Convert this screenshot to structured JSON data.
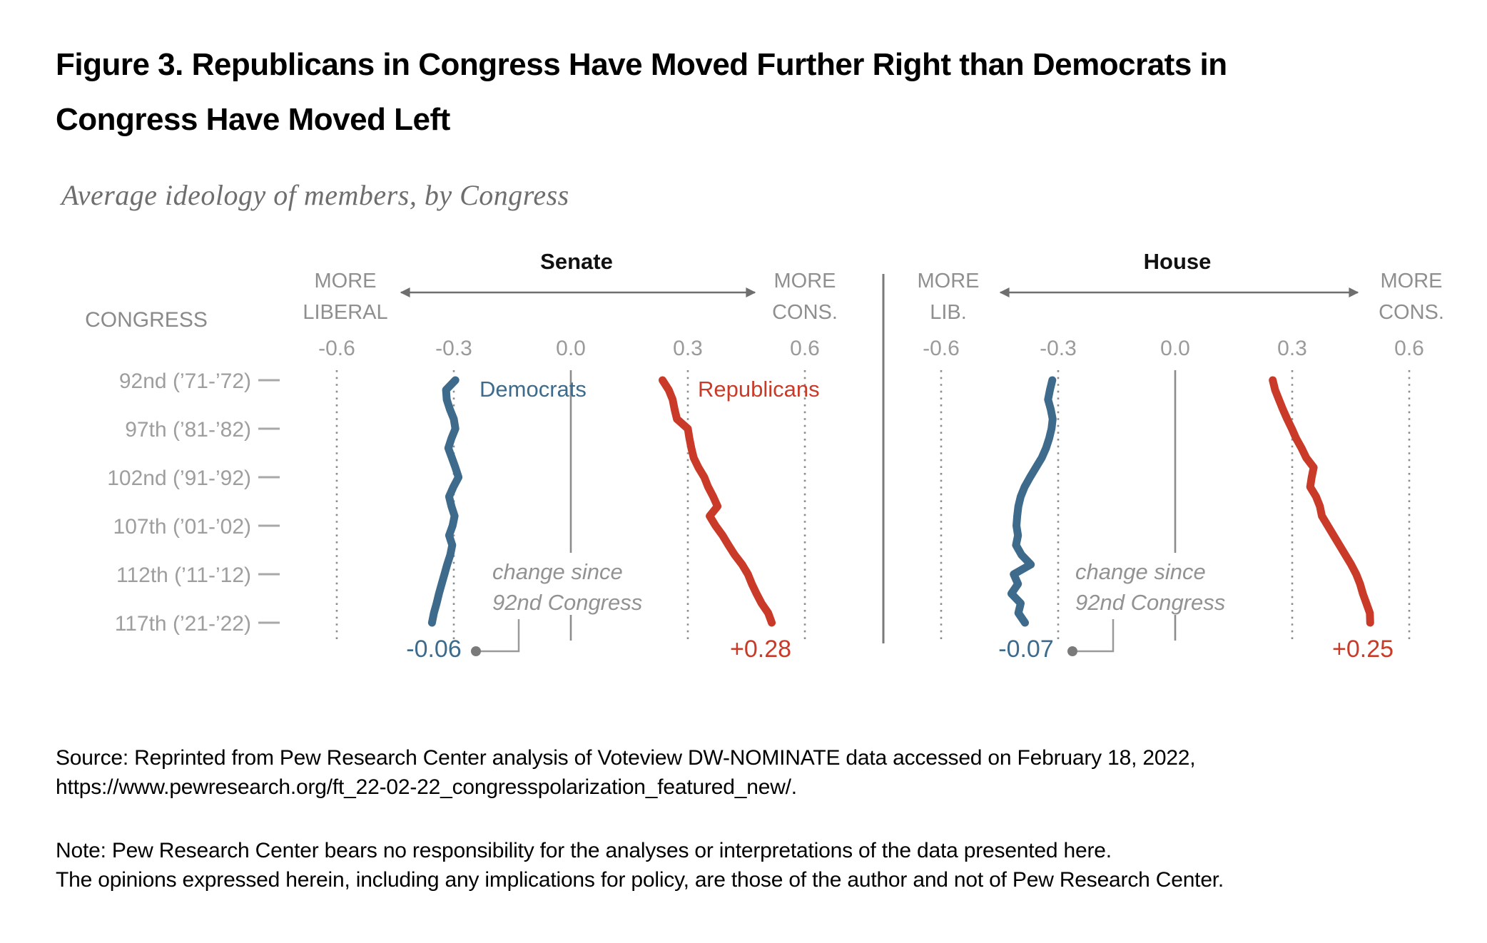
{
  "figure": {
    "title_line1": "Figure 3. Republicans in Congress Have Moved Further Right than Democrats in",
    "title_line2": "Congress Have Moved Left",
    "subtitle": "Average ideology of members, by Congress"
  },
  "colors": {
    "democrat": "#3e6b8c",
    "republican": "#c93b28"
  },
  "congress_axis": {
    "header": "CONGRESS",
    "rows": [
      {
        "congress": 92,
        "label": "92nd (’71-’72)"
      },
      {
        "congress": 97,
        "label": "97th (’81-’82)"
      },
      {
        "congress": 102,
        "label": "102nd (’91-’92)"
      },
      {
        "congress": 107,
        "label": "107th (’01-’02)"
      },
      {
        "congress": 112,
        "label": "112th (’11-’12)"
      },
      {
        "congress": 117,
        "label": "117th (’21-’22)"
      }
    ]
  },
  "panels": {
    "senate": {
      "title": "Senate",
      "left_label_line1": "MORE",
      "left_label_line2": "LIBERAL",
      "right_label_line1": "MORE",
      "right_label_line2": "CONS.",
      "democrats_label": "Democrats",
      "republicans_label": "Republicans",
      "annotation_line1": "change since",
      "annotation_line2": "92nd Congress",
      "dem_change_label": "-0.06",
      "rep_change_label": "+0.28"
    },
    "house": {
      "title": "House",
      "left_label_line1": "MORE",
      "left_label_line2": "LIB.",
      "right_label_line1": "MORE",
      "right_label_line2": "CONS.",
      "annotation_line1": "change since",
      "annotation_line2": "92nd Congress",
      "dem_change_label": "-0.07",
      "rep_change_label": "+0.25"
    }
  },
  "chart_data": {
    "type": "line",
    "title": "Average ideology of members, by Congress",
    "x_axis": {
      "ticks": [
        -0.6,
        -0.3,
        0,
        0.3,
        0.6
      ],
      "tick_labels": [
        "-0.6",
        "-0.3",
        "0.0",
        "0.3",
        "0.6"
      ],
      "xlim": [
        -0.75,
        0.85
      ],
      "label_left": "MORE LIBERAL",
      "label_right": "MORE CONS."
    },
    "congresses": [
      92,
      93,
      94,
      95,
      96,
      97,
      98,
      99,
      100,
      101,
      102,
      103,
      104,
      105,
      106,
      107,
      108,
      109,
      110,
      111,
      112,
      113,
      114,
      115,
      116,
      117
    ],
    "panels": [
      {
        "name": "Senate",
        "series": [
          {
            "name": "Democrats",
            "change_since_92nd": -0.06,
            "values": [
              -0.296,
              -0.32,
              -0.318,
              -0.31,
              -0.3,
              -0.296,
              -0.306,
              -0.314,
              -0.305,
              -0.296,
              -0.288,
              -0.301,
              -0.312,
              -0.306,
              -0.298,
              -0.303,
              -0.312,
              -0.304,
              -0.309,
              -0.317,
              -0.324,
              -0.331,
              -0.338,
              -0.344,
              -0.351,
              -0.356
            ]
          },
          {
            "name": "Republicans",
            "change_since_92nd": 0.28,
            "values": [
              0.235,
              0.251,
              0.261,
              0.266,
              0.272,
              0.3,
              0.304,
              0.309,
              0.315,
              0.327,
              0.342,
              0.352,
              0.365,
              0.376,
              0.356,
              0.371,
              0.389,
              0.404,
              0.42,
              0.439,
              0.454,
              0.464,
              0.476,
              0.489,
              0.506,
              0.515
            ]
          }
        ]
      },
      {
        "name": "House",
        "series": [
          {
            "name": "Democrats",
            "change_since_92nd": -0.07,
            "values": [
              -0.315,
              -0.321,
              -0.326,
              -0.319,
              -0.314,
              -0.317,
              -0.323,
              -0.331,
              -0.342,
              -0.357,
              -0.372,
              -0.386,
              -0.396,
              -0.402,
              -0.405,
              -0.407,
              -0.403,
              -0.408,
              -0.394,
              -0.37,
              -0.414,
              -0.403,
              -0.42,
              -0.396,
              -0.402,
              -0.385
            ]
          },
          {
            "name": "Republicans",
            "change_since_92nd": 0.25,
            "values": [
              0.25,
              0.256,
              0.266,
              0.276,
              0.287,
              0.299,
              0.31,
              0.324,
              0.336,
              0.355,
              0.35,
              0.346,
              0.361,
              0.371,
              0.376,
              0.391,
              0.406,
              0.421,
              0.436,
              0.451,
              0.464,
              0.474,
              0.481,
              0.49,
              0.499,
              0.5
            ]
          }
        ]
      }
    ]
  },
  "footer": {
    "source_line1": "Source: Reprinted from Pew Research Center analysis of Voteview DW-NOMINATE data accessed on February 18, 2022,",
    "source_line2": "https://www.pewresearch.org/ft_22-02-22_congresspolarization_featured_new/.",
    "note_line1": "Note: Pew Research Center bears no responsibility for the analyses or interpretations of the data presented here.",
    "note_line2": "The opinions expressed herein, including any implications for policy, are those of the author and not of Pew Research Center."
  }
}
